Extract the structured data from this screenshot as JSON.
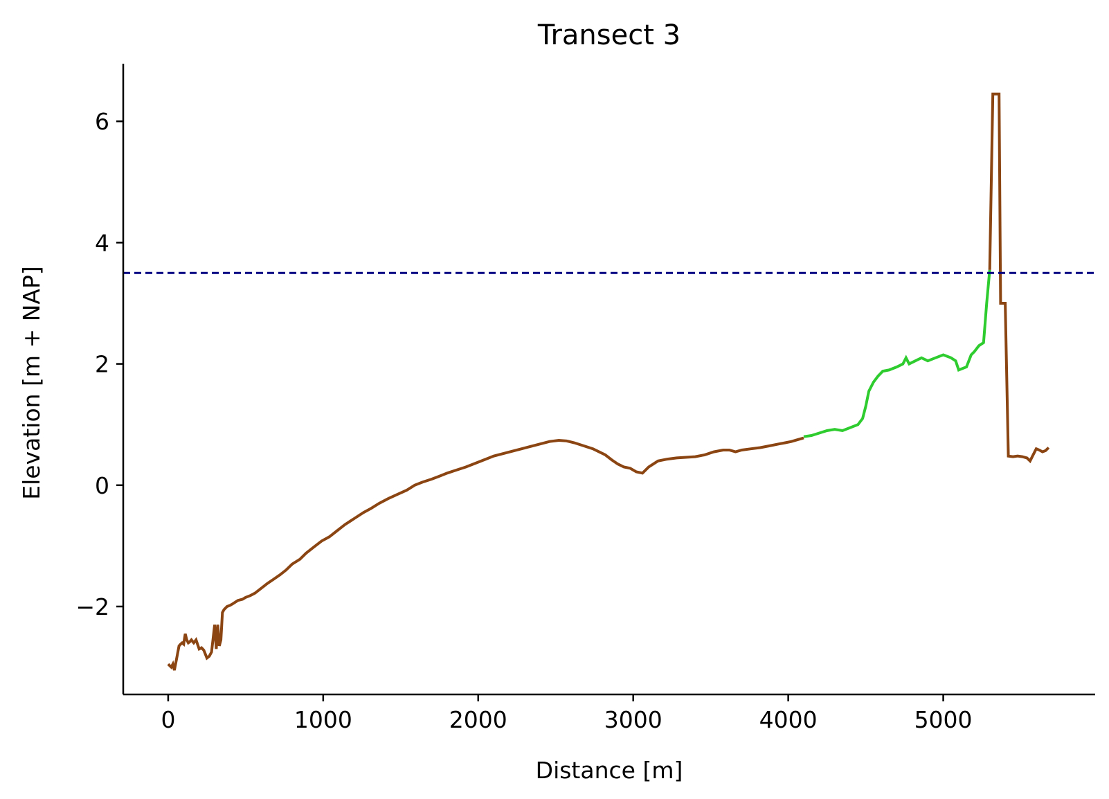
{
  "chart_data": {
    "type": "line",
    "title": "Transect 3",
    "xlabel": "Distance [m]",
    "ylabel": "Elevation [m + NAP]",
    "xlim": [
      -290,
      5980
    ],
    "ylim": [
      -3.45,
      6.95
    ],
    "xticks": [
      0,
      1000,
      2000,
      3000,
      4000,
      5000
    ],
    "xtick_labels": [
      "0",
      "1000",
      "2000",
      "3000",
      "4000",
      "5000"
    ],
    "yticks": [
      -2,
      0,
      2,
      4,
      6
    ],
    "ytick_labels": [
      "−2",
      "0",
      "2",
      "4",
      "6"
    ],
    "grid": false,
    "reference_line": {
      "y": 3.5,
      "color": "#000080",
      "style": "dashed"
    },
    "series": [
      {
        "color": "#8B4513",
        "x": [
          0,
          20,
          30,
          40,
          55,
          70,
          80,
          90,
          100,
          110,
          120,
          130,
          140,
          150,
          165,
          180,
          200,
          215,
          230,
          250,
          265,
          280,
          300,
          310,
          320,
          330,
          340,
          350,
          360,
          380,
          400,
          420,
          450,
          480,
          500,
          530,
          560,
          600,
          640,
          680,
          720,
          760,
          800,
          850,
          890,
          940,
          990,
          1040,
          1090,
          1140,
          1200,
          1260,
          1310,
          1360,
          1420,
          1480,
          1540,
          1590,
          1640,
          1700,
          1750,
          1800,
          1860,
          1920,
          1980,
          2040,
          2100,
          2160,
          2220,
          2280,
          2340,
          2400,
          2460,
          2520,
          2570,
          2620,
          2680,
          2740,
          2780,
          2820,
          2860,
          2900,
          2940,
          2980,
          3020,
          3060,
          3100,
          3160,
          3220,
          3280,
          3340,
          3400,
          3460,
          3520,
          3580,
          3620,
          3660,
          3700,
          3760,
          3820,
          3880,
          3940,
          3980,
          4020,
          4060,
          4100
        ],
        "y": [
          -2.95,
          -3.0,
          -2.95,
          -3.05,
          -2.85,
          -2.65,
          -2.62,
          -2.6,
          -2.62,
          -2.45,
          -2.55,
          -2.6,
          -2.58,
          -2.55,
          -2.6,
          -2.55,
          -2.7,
          -2.68,
          -2.72,
          -2.85,
          -2.82,
          -2.75,
          -2.3,
          -2.7,
          -2.3,
          -2.65,
          -2.55,
          -2.1,
          -2.05,
          -2.0,
          -1.98,
          -1.95,
          -1.9,
          -1.88,
          -1.85,
          -1.82,
          -1.78,
          -1.7,
          -1.62,
          -1.55,
          -1.48,
          -1.4,
          -1.3,
          -1.22,
          -1.12,
          -1.02,
          -0.92,
          -0.85,
          -0.75,
          -0.65,
          -0.55,
          -0.45,
          -0.38,
          -0.3,
          -0.22,
          -0.15,
          -0.08,
          0.0,
          0.05,
          0.1,
          0.15,
          0.2,
          0.25,
          0.3,
          0.36,
          0.42,
          0.48,
          0.52,
          0.56,
          0.6,
          0.64,
          0.68,
          0.72,
          0.74,
          0.73,
          0.7,
          0.65,
          0.6,
          0.55,
          0.5,
          0.42,
          0.35,
          0.3,
          0.28,
          0.22,
          0.2,
          0.3,
          0.4,
          0.43,
          0.45,
          0.46,
          0.47,
          0.5,
          0.55,
          0.58,
          0.58,
          0.55,
          0.58,
          0.6,
          0.62,
          0.65,
          0.68,
          0.7,
          0.72,
          0.75,
          0.78
        ]
      },
      {
        "color": "#2ECC2E",
        "x": [
          4100,
          4150,
          4200,
          4250,
          4300,
          4350,
          4400,
          4450,
          4480,
          4500,
          4520,
          4550,
          4580,
          4610,
          4650,
          4700,
          4740,
          4760,
          4780,
          4820,
          4860,
          4900,
          4950,
          5000,
          5050,
          5080,
          5100,
          5150,
          5180,
          5200,
          5230,
          5260,
          5280,
          5300
        ],
        "y": [
          0.8,
          0.82,
          0.86,
          0.9,
          0.92,
          0.9,
          0.95,
          1.0,
          1.1,
          1.3,
          1.55,
          1.7,
          1.8,
          1.88,
          1.9,
          1.95,
          2.0,
          2.1,
          2.0,
          2.05,
          2.1,
          2.05,
          2.1,
          2.15,
          2.1,
          2.05,
          1.9,
          1.95,
          2.15,
          2.2,
          2.3,
          2.35,
          3.0,
          3.55
        ]
      },
      {
        "color": "#8B4513",
        "x": [
          5300,
          5320,
          5330,
          5340,
          5360,
          5370,
          5385,
          5400,
          5420,
          5450,
          5480,
          5510,
          5540,
          5560,
          5580,
          5600,
          5620,
          5640,
          5660,
          5680
        ],
        "y": [
          3.55,
          6.45,
          6.45,
          6.45,
          6.45,
          3.0,
          3.0,
          3.0,
          0.48,
          0.47,
          0.48,
          0.47,
          0.45,
          0.4,
          0.5,
          0.6,
          0.58,
          0.55,
          0.57,
          0.62
        ]
      }
    ]
  }
}
